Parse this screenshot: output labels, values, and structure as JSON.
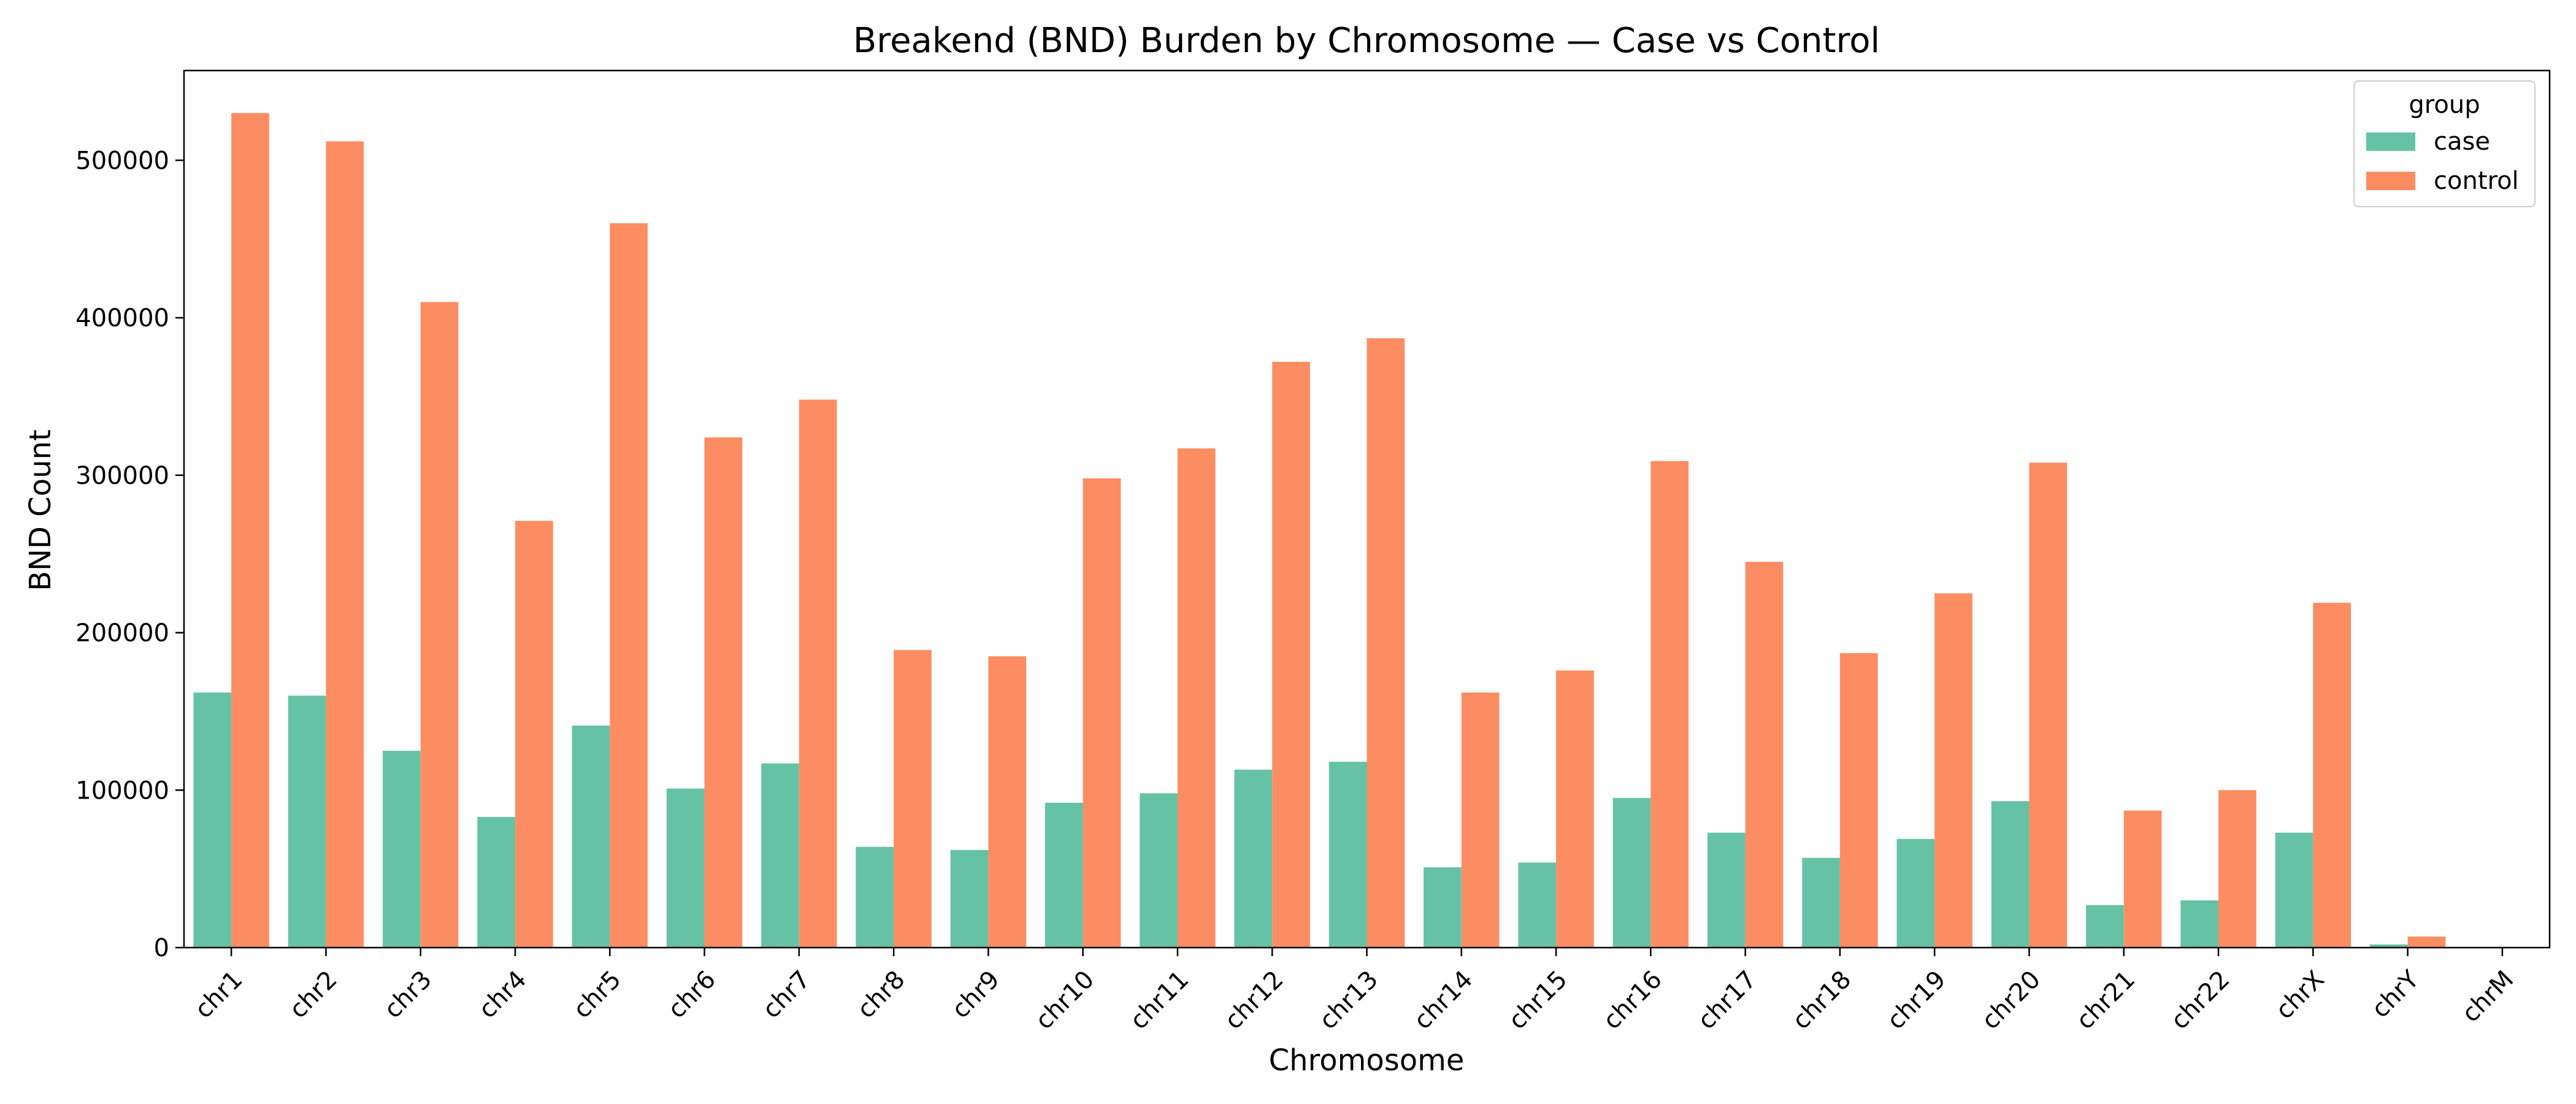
{
  "chart_data": {
    "type": "bar",
    "title": "Breakend (BND) Burden by Chromosome — Case vs Control",
    "xlabel": "Chromosome",
    "ylabel": "BND Count",
    "categories": [
      "chr1",
      "chr2",
      "chr3",
      "chr4",
      "chr5",
      "chr6",
      "chr7",
      "chr8",
      "chr9",
      "chr10",
      "chr11",
      "chr12",
      "chr13",
      "chr14",
      "chr15",
      "chr16",
      "chr17",
      "chr18",
      "chr19",
      "chr20",
      "chr21",
      "chr22",
      "chrX",
      "chrY",
      "chrM"
    ],
    "series": [
      {
        "name": "case",
        "color": "#66c2a5",
        "values": [
          162000,
          160000,
          125000,
          83000,
          141000,
          101000,
          117000,
          64000,
          62000,
          92000,
          98000,
          113000,
          118000,
          51000,
          54000,
          95000,
          73000,
          57000,
          69000,
          93000,
          27000,
          30000,
          73000,
          2000,
          0
        ]
      },
      {
        "name": "control",
        "color": "#fc8d62",
        "values": [
          530000,
          512000,
          410000,
          271000,
          460000,
          324000,
          348000,
          189000,
          185000,
          298000,
          317000,
          372000,
          387000,
          162000,
          176000,
          309000,
          245000,
          187000,
          225000,
          308000,
          87000,
          100000,
          219000,
          7000,
          0
        ]
      }
    ],
    "ylim": [
      0,
      557000
    ],
    "yticks": [
      0,
      100000,
      200000,
      300000,
      400000,
      500000
    ],
    "legend": {
      "title": "group",
      "placement": "top-right"
    },
    "grid": false
  }
}
